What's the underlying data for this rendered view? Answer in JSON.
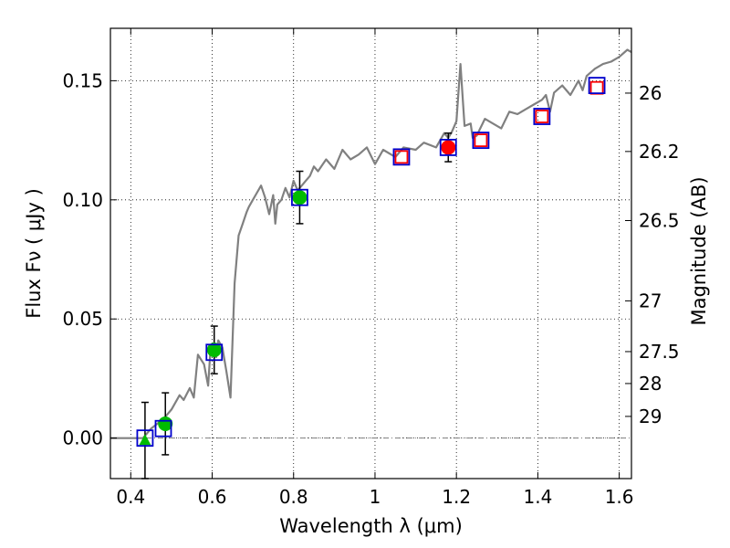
{
  "chart_data": {
    "type": "scatter",
    "title": "",
    "xlabel": "Wavelength  λ (μm)",
    "ylabel": "Flux  Fν  ( μJy )",
    "ylabel_right": "Magnitude (AB)",
    "xlim": [
      0.35,
      1.63
    ],
    "ylim": [
      -0.017,
      0.172
    ],
    "grid": true,
    "x_ticks": [
      0.4,
      0.6,
      0.8,
      1.0,
      1.2,
      1.4,
      1.6
    ],
    "x_tick_labels": [
      "0.4",
      "0.6",
      "0.8",
      "1",
      "1.2",
      "1.4",
      "1.6"
    ],
    "y_ticks": [
      0.0,
      0.05,
      0.1,
      0.15
    ],
    "y_tick_labels": [
      "0.00",
      "0.05",
      "0.10",
      "0.15"
    ],
    "right_ticks": [
      {
        "label": "26",
        "flux": 0.1448
      },
      {
        "label": "26.2",
        "flux": 0.1203
      },
      {
        "label": "26.5",
        "flux": 0.0913
      },
      {
        "label": "27",
        "flux": 0.0576
      },
      {
        "label": "27.5",
        "flux": 0.0363
      },
      {
        "label": "28",
        "flux": 0.0229
      },
      {
        "label": "29",
        "flux": 0.0091
      }
    ],
    "spectrum": {
      "name": "model template",
      "color": "#808080",
      "x": [
        0.35,
        0.43,
        0.45,
        0.48,
        0.5,
        0.52,
        0.53,
        0.545,
        0.555,
        0.565,
        0.58,
        0.59,
        0.595,
        0.61,
        0.615,
        0.625,
        0.635,
        0.645,
        0.655,
        0.665,
        0.675,
        0.685,
        0.69,
        0.7,
        0.71,
        0.72,
        0.73,
        0.74,
        0.75,
        0.755,
        0.76,
        0.77,
        0.78,
        0.79,
        0.8,
        0.81,
        0.82,
        0.83,
        0.84,
        0.85,
        0.86,
        0.88,
        0.9,
        0.92,
        0.94,
        0.96,
        0.98,
        1.0,
        1.02,
        1.05,
        1.07,
        1.1,
        1.12,
        1.15,
        1.17,
        1.18,
        1.19,
        1.2,
        1.21,
        1.22,
        1.235,
        1.24,
        1.25,
        1.27,
        1.29,
        1.31,
        1.33,
        1.35,
        1.37,
        1.39,
        1.41,
        1.42,
        1.43,
        1.44,
        1.46,
        1.48,
        1.5,
        1.51,
        1.52,
        1.54,
        1.56,
        1.58,
        1.6,
        1.62,
        1.63
      ],
      "flux": [
        0.0,
        0.0,
        0.004,
        0.008,
        0.012,
        0.018,
        0.016,
        0.021,
        0.017,
        0.035,
        0.031,
        0.022,
        0.035,
        0.034,
        0.041,
        0.038,
        0.028,
        0.017,
        0.065,
        0.085,
        0.09,
        0.095,
        0.097,
        0.1,
        0.103,
        0.106,
        0.101,
        0.094,
        0.102,
        0.09,
        0.098,
        0.1,
        0.105,
        0.101,
        0.108,
        0.104,
        0.106,
        0.108,
        0.11,
        0.114,
        0.112,
        0.117,
        0.113,
        0.121,
        0.117,
        0.119,
        0.122,
        0.115,
        0.121,
        0.118,
        0.122,
        0.121,
        0.124,
        0.122,
        0.128,
        0.126,
        0.129,
        0.133,
        0.157,
        0.131,
        0.132,
        0.126,
        0.127,
        0.134,
        0.132,
        0.13,
        0.137,
        0.136,
        0.138,
        0.14,
        0.142,
        0.144,
        0.137,
        0.145,
        0.148,
        0.144,
        0.15,
        0.146,
        0.152,
        0.155,
        0.157,
        0.158,
        0.16,
        0.163,
        0.162
      ]
    },
    "series": [
      {
        "name": "green-points",
        "marker": "circle",
        "color": "#00bb00",
        "x": [
          0.485,
          0.605,
          0.815
        ],
        "y": [
          0.006,
          0.037,
          0.101
        ],
        "yerr": [
          0.013,
          0.01,
          0.011
        ]
      },
      {
        "name": "green-triangle",
        "marker": "triangle",
        "color": "#00bb00",
        "x": [
          0.435
        ],
        "y": [
          -0.001
        ],
        "yerr": [
          0.016
        ]
      },
      {
        "name": "red-point",
        "marker": "circle",
        "color": "#ff0000",
        "x": [
          1.18
        ],
        "y": [
          0.122
        ],
        "yerr": [
          0.006
        ]
      },
      {
        "name": "red-open-squares",
        "marker": "open-square",
        "color": "#ff0000",
        "x": [
          1.065,
          1.26,
          1.41,
          1.545
        ],
        "y": [
          0.118,
          0.125,
          0.135,
          0.147
        ]
      },
      {
        "name": "blue-model-squares",
        "marker": "open-square",
        "color": "#0000cc",
        "x": [
          0.435,
          0.48,
          0.605,
          0.815,
          1.065,
          1.18,
          1.26,
          1.41,
          1.545
        ],
        "y": [
          0.0,
          0.004,
          0.036,
          0.101,
          0.118,
          0.122,
          0.125,
          0.135,
          0.148
        ]
      }
    ],
    "zero_line": {
      "y": 0.0,
      "style": "dash-dot",
      "color": "#808080"
    }
  },
  "colors": {
    "frame": "#000000",
    "grid": "#000000",
    "spectrum": "#808080",
    "green": "#00bb00",
    "red": "#ff0000",
    "blue": "#0000cc"
  }
}
